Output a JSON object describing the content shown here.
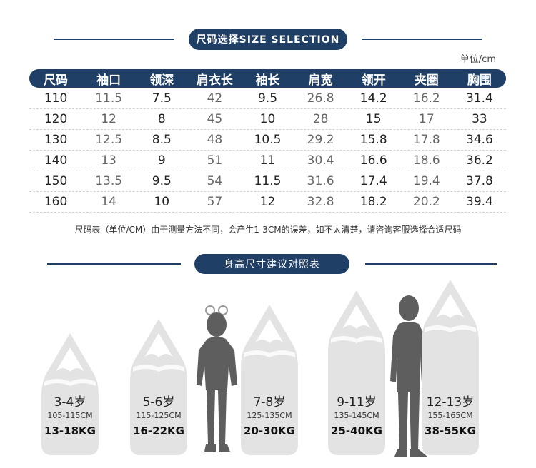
{
  "size_section": {
    "title": "尺码选择SIZE SELECTION",
    "unit": "单位/cm",
    "headers": [
      "尺码",
      "袖口",
      "领深",
      "肩衣长",
      "袖长",
      "肩宽",
      "领开",
      "夹圈",
      "胸围"
    ],
    "rows": [
      [
        "110",
        "11.5",
        "7.5",
        "42",
        "9.5",
        "26.8",
        "14.2",
        "16.2",
        "31.4"
      ],
      [
        "120",
        "12",
        "8",
        "45",
        "10",
        "28",
        "15",
        "17",
        "33"
      ],
      [
        "130",
        "12.5",
        "8.5",
        "48",
        "10.5",
        "29.2",
        "15.8",
        "17.8",
        "34.6"
      ],
      [
        "140",
        "13",
        "9",
        "51",
        "11",
        "30.4",
        "16.6",
        "18.6",
        "36.2"
      ],
      [
        "150",
        "13.5",
        "9.5",
        "54",
        "11.5",
        "31.6",
        "17.4",
        "19.4",
        "37.8"
      ],
      [
        "160",
        "14",
        "10",
        "57",
        "12",
        "32.8",
        "18.2",
        "20.2",
        "39.4"
      ]
    ],
    "note": "尺码表（单位/CM）由于测量方法不同，会产生1-3CM的误差，如不太清楚，请咨询客服选择合适尺码"
  },
  "height_section": {
    "title": "身高尺寸建议对照表",
    "items": [
      {
        "age": "3-4岁",
        "height": "105-115CM",
        "weight": "13-18KG"
      },
      {
        "age": "5-6岁",
        "height": "115-125CM",
        "weight": "16-22KG"
      },
      {
        "age": "7-8岁",
        "height": "125-135CM",
        "weight": "20-30KG"
      },
      {
        "age": "9-11岁",
        "height": "135-145CM",
        "weight": "25-40KG"
      },
      {
        "age": "12-13岁",
        "height": "155-165CM",
        "weight": "38-55KG"
      }
    ]
  },
  "colors": {
    "navy": "#1f3f66",
    "bottle": "#e3e3e3",
    "silhouette": "#5e5e5e"
  }
}
